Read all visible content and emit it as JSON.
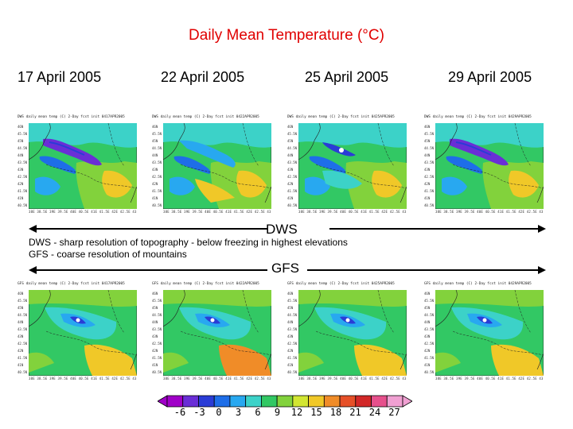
{
  "title": "Daily Mean Temperature (°C)",
  "dates": [
    "17 April 2005",
    "22 April 2005",
    "25 April 2005",
    "29 April 2005"
  ],
  "dws": {
    "label": "DWS",
    "notes": [
      "DWS - sharp resolution of topography - below freezing in highest elevations",
      "GFS - coarse resolution of mountains"
    ],
    "panel_headers": [
      "DWS daily mean temp (C) 2-Day fcst init 0417APR2005",
      "DWS daily mean temp (C) 2-Day fcst init 0422APR2005",
      "DWS daily mean temp (C) 2-Day fcst init 0425APR2005",
      "DWS daily mean temp (C) 2-Day fcst init 0429APR2005"
    ]
  },
  "gfs": {
    "label": "GFS",
    "panel_headers": [
      "GFS daily mean temp (C) 2-Day fcst init 0417APR2005",
      "GFS daily mean temp (C) 2-Day fcst init 0422APR2005",
      "GFS daily mean temp (C) 2-Day fcst init 0425APR2005",
      "GFS daily mean temp (C) 2-Day fcst init 0429APR2005"
    ]
  },
  "axis": {
    "lat_labels": [
      "46N",
      "45.5N",
      "45N",
      "44.5N",
      "44N",
      "43.5N",
      "43N",
      "42.5N",
      "42N",
      "41.5N",
      "41N",
      "40.5N"
    ],
    "lon_labels": "38E 38.5E 39E 39.5E 40E 40.5E 41E 41.5E 42E 42.5E 43E 43.5E 44E 44.5E 45E"
  },
  "colorbar": {
    "ticks": [
      "-6",
      "-3",
      "0",
      "3",
      "6",
      "9",
      "12",
      "15",
      "18",
      "21",
      "24",
      "27"
    ],
    "colors": [
      "#a000c8",
      "#6a2ed6",
      "#2a3cd6",
      "#1e6ee8",
      "#28a8f0",
      "#3cd2c8",
      "#32c864",
      "#82d23c",
      "#d2e632",
      "#f0c828",
      "#f08c28",
      "#e65028",
      "#d22828",
      "#e6508c",
      "#f0a0d2"
    ]
  },
  "colors": {
    "title": "#e00000"
  }
}
